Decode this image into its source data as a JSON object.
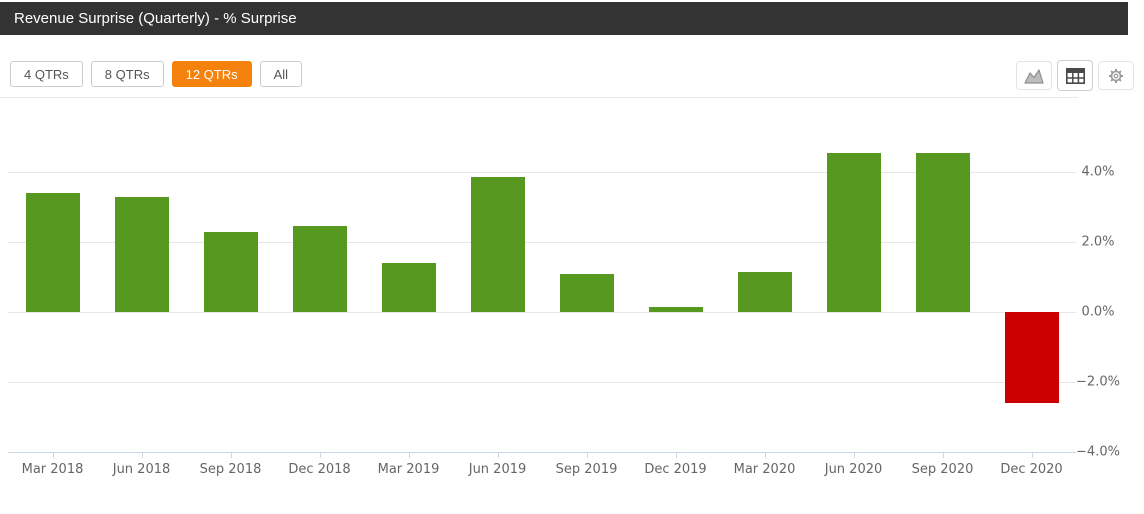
{
  "header": {
    "title": "Revenue Surprise (Quarterly) - % Surprise"
  },
  "toolbar": {
    "range_buttons": [
      {
        "label": "4 QTRs",
        "active": false
      },
      {
        "label": "8 QTRs",
        "active": false
      },
      {
        "label": "12 QTRs",
        "active": true
      },
      {
        "label": "All",
        "active": false
      }
    ],
    "active_button_color": "#f5820d",
    "icon_buttons": [
      "area-chart-icon",
      "table-icon",
      "gear-icon"
    ]
  },
  "chart_data": {
    "type": "bar",
    "title": "Revenue Surprise (Quarterly) - % Surprise",
    "categories": [
      "Mar 2018",
      "Jun 2018",
      "Sep 2018",
      "Dec 2018",
      "Mar 2019",
      "Jun 2019",
      "Sep 2019",
      "Dec 2019",
      "Mar 2020",
      "Jun 2020",
      "Sep 2020",
      "Dec 2020"
    ],
    "values": [
      3.4,
      3.3,
      2.3,
      2.45,
      1.4,
      3.85,
      1.1,
      0.15,
      1.15,
      4.55,
      4.55,
      -2.6
    ],
    "xlabel": "",
    "ylabel": "",
    "ylim": [
      -4,
      5.2
    ],
    "y_ticks": [
      -4,
      -2,
      0,
      2,
      4
    ],
    "y_tick_labels": [
      "−4.0%",
      "−2.0%",
      "0.0%",
      "2.0%",
      "4.0%"
    ],
    "yaxis_position": "right",
    "grid": "horizontal",
    "legend_position": "none",
    "positive_color": "#569820",
    "negative_color": "#cc0000",
    "grid_color": "#e6e6e6",
    "axis_line_color": "#ccd6eb",
    "label_color": "#666666"
  }
}
